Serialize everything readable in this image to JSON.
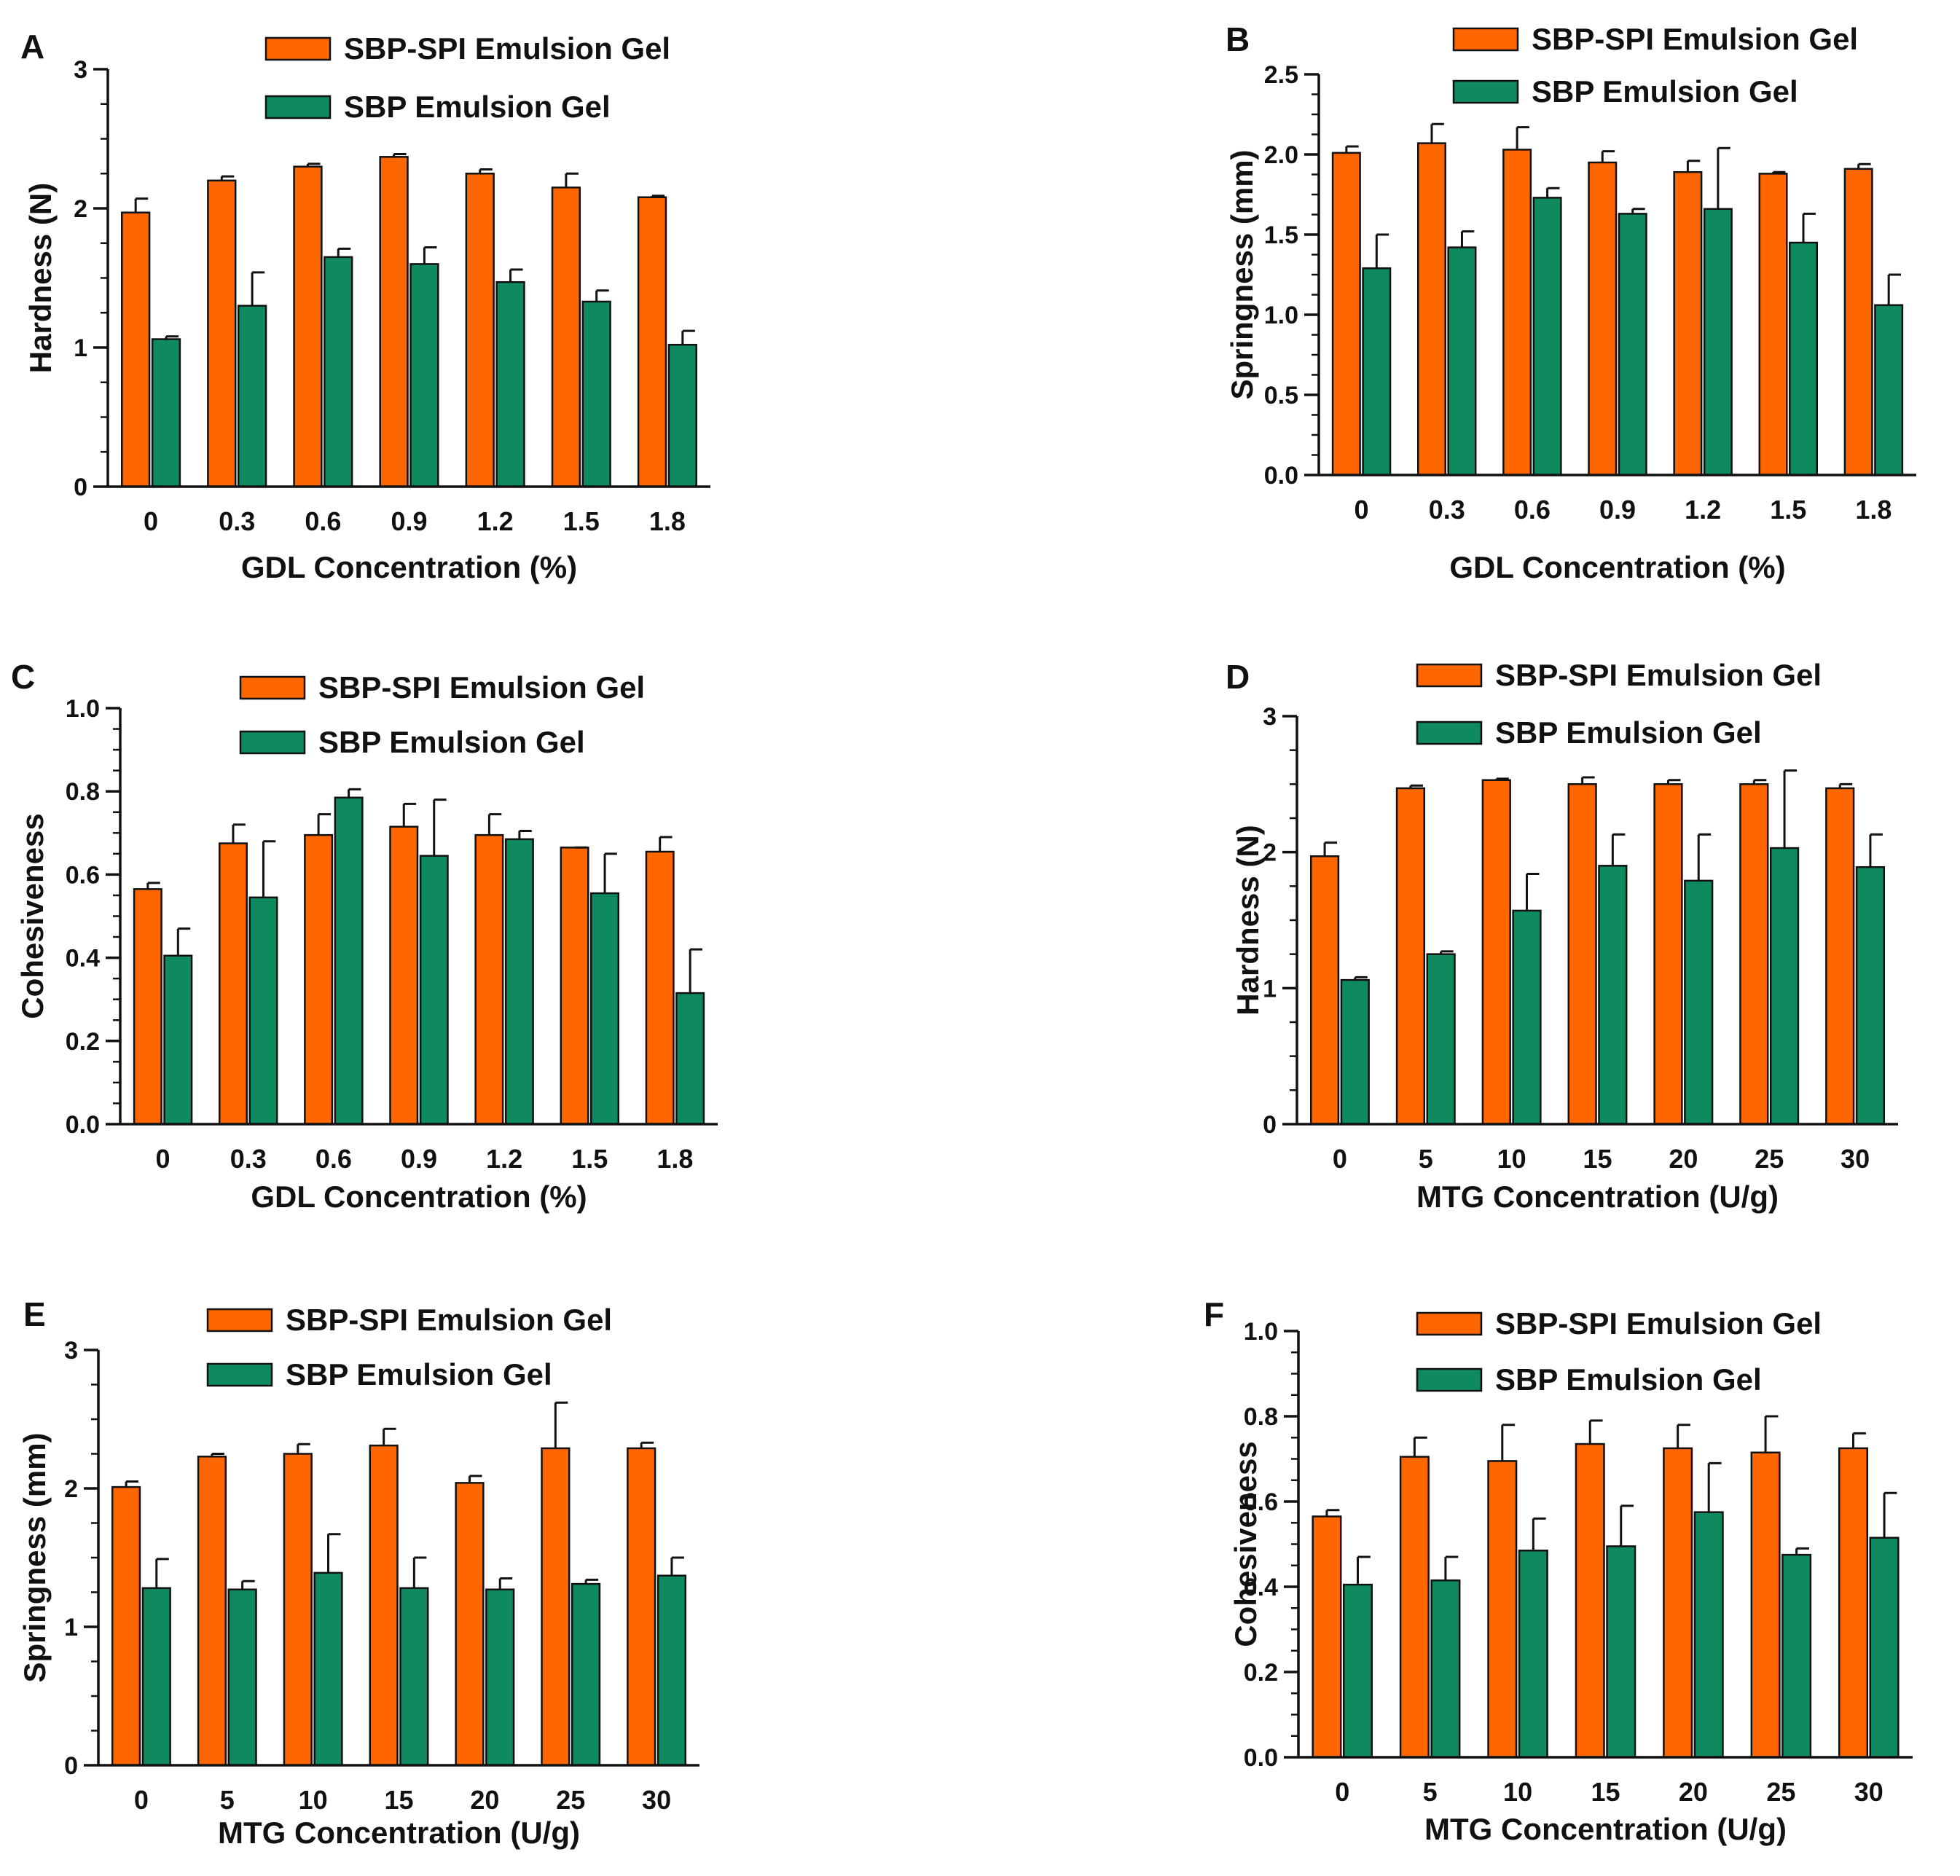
{
  "colors": {
    "series_a": "#FF6600",
    "series_b": "#0F8A5F",
    "axis": "#111111"
  },
  "chart_data": [
    {
      "panel": "A",
      "type": "bar",
      "xlabel": "GDL Concentration (%)",
      "ylabel": "Hardness (N)",
      "ylim": [
        0,
        3
      ],
      "yticks": [
        "0",
        "1",
        "2",
        "3"
      ],
      "categories": [
        "0",
        "0.3",
        "0.6",
        "0.9",
        "1.2",
        "1.5",
        "1.8"
      ],
      "series": [
        {
          "name": "SBP-SPI Emulsion Gel",
          "values": [
            1.97,
            2.2,
            2.3,
            2.37,
            2.25,
            2.15,
            2.08
          ],
          "errors": [
            0.1,
            0.03,
            0.02,
            0.02,
            0.03,
            0.1,
            0.01
          ]
        },
        {
          "name": "SBP Emulsion Gel",
          "values": [
            1.06,
            1.3,
            1.65,
            1.6,
            1.47,
            1.33,
            1.02
          ],
          "errors": [
            0.02,
            0.24,
            0.06,
            0.12,
            0.09,
            0.08,
            0.1
          ]
        }
      ],
      "legend": "top-right",
      "grid": false
    },
    {
      "panel": "B",
      "type": "bar",
      "xlabel": "GDL Concentration (%)",
      "ylabel": "Springness (mm)",
      "ylim": [
        0,
        2.5
      ],
      "yticks": [
        "0.0",
        "0.5",
        "1.0",
        "1.5",
        "2.0",
        "2.5"
      ],
      "categories": [
        "0",
        "0.3",
        "0.6",
        "0.9",
        "1.2",
        "1.5",
        "1.8"
      ],
      "series": [
        {
          "name": "SBP-SPI Emulsion Gel",
          "values": [
            2.01,
            2.07,
            2.03,
            1.95,
            1.89,
            1.88,
            1.91
          ],
          "errors": [
            0.04,
            0.12,
            0.14,
            0.07,
            0.07,
            0.01,
            0.03
          ]
        },
        {
          "name": "SBP Emulsion Gel",
          "values": [
            1.29,
            1.42,
            1.73,
            1.63,
            1.66,
            1.45,
            1.06
          ],
          "errors": [
            0.21,
            0.1,
            0.06,
            0.03,
            0.38,
            0.18,
            0.19
          ]
        }
      ],
      "legend": "top-right",
      "grid": false
    },
    {
      "panel": "C",
      "type": "bar",
      "xlabel": "GDL Concentration (%)",
      "ylabel": "Cohesiveness",
      "ylim": [
        0,
        1.0
      ],
      "yticks": [
        "0.0",
        "0.2",
        "0.4",
        "0.6",
        "0.8",
        "1.0"
      ],
      "categories": [
        "0",
        "0.3",
        "0.6",
        "0.9",
        "1.2",
        "1.5",
        "1.8"
      ],
      "series": [
        {
          "name": "SBP-SPI Emulsion Gel",
          "values": [
            0.565,
            0.675,
            0.695,
            0.715,
            0.695,
            0.665,
            0.655
          ],
          "errors": [
            0.015,
            0.045,
            0.05,
            0.055,
            0.05,
            0.0,
            0.035
          ]
        },
        {
          "name": "SBP Emulsion Gel",
          "values": [
            0.405,
            0.545,
            0.785,
            0.645,
            0.685,
            0.555,
            0.315
          ],
          "errors": [
            0.065,
            0.135,
            0.02,
            0.135,
            0.02,
            0.095,
            0.105
          ]
        }
      ],
      "legend": "top-right",
      "grid": false
    },
    {
      "panel": "D",
      "type": "bar",
      "xlabel": "MTG Concentration (U/g)",
      "ylabel": "Hardness (N)",
      "ylim": [
        0,
        3
      ],
      "yticks": [
        "0",
        "1",
        "2",
        "3"
      ],
      "categories": [
        "0",
        "5",
        "10",
        "15",
        "20",
        "25",
        "30"
      ],
      "series": [
        {
          "name": "SBP-SPI Emulsion Gel",
          "values": [
            1.97,
            2.47,
            2.53,
            2.5,
            2.5,
            2.5,
            2.47
          ],
          "errors": [
            0.1,
            0.02,
            0.01,
            0.05,
            0.03,
            0.03,
            0.03
          ]
        },
        {
          "name": "SBP Emulsion Gel",
          "values": [
            1.06,
            1.25,
            1.57,
            1.9,
            1.79,
            2.03,
            1.89
          ],
          "errors": [
            0.02,
            0.02,
            0.27,
            0.23,
            0.34,
            0.57,
            0.24
          ]
        }
      ],
      "legend": "top-right",
      "grid": false
    },
    {
      "panel": "E",
      "type": "bar",
      "xlabel": "MTG Concentration (U/g)",
      "ylabel": "Springness (mm)",
      "ylim": [
        0,
        3
      ],
      "yticks": [
        "0",
        "1",
        "2",
        "3"
      ],
      "categories": [
        "0",
        "5",
        "10",
        "15",
        "20",
        "25",
        "30"
      ],
      "series": [
        {
          "name": "SBP-SPI Emulsion Gel",
          "values": [
            2.01,
            2.23,
            2.25,
            2.31,
            2.04,
            2.29,
            2.29
          ],
          "errors": [
            0.04,
            0.02,
            0.07,
            0.12,
            0.05,
            0.33,
            0.04
          ]
        },
        {
          "name": "SBP Emulsion Gel",
          "values": [
            1.28,
            1.27,
            1.39,
            1.28,
            1.27,
            1.31,
            1.37
          ],
          "errors": [
            0.21,
            0.06,
            0.28,
            0.22,
            0.08,
            0.03,
            0.13
          ]
        }
      ],
      "legend": "top-right",
      "grid": false
    },
    {
      "panel": "F",
      "type": "bar",
      "xlabel": "MTG Concentration (U/g)",
      "ylabel": "Cohesiveness",
      "ylim": [
        0,
        1.0
      ],
      "yticks": [
        "0.0",
        "0.2",
        "0.4",
        "0.6",
        "0.8",
        "1.0"
      ],
      "categories": [
        "0",
        "5",
        "10",
        "15",
        "20",
        "25",
        "30"
      ],
      "series": [
        {
          "name": "SBP-SPI Emulsion Gel",
          "values": [
            0.565,
            0.705,
            0.695,
            0.735,
            0.725,
            0.715,
            0.725
          ],
          "errors": [
            0.015,
            0.045,
            0.085,
            0.055,
            0.055,
            0.085,
            0.035
          ]
        },
        {
          "name": "SBP Emulsion Gel",
          "values": [
            0.405,
            0.415,
            0.485,
            0.495,
            0.575,
            0.475,
            0.515
          ],
          "errors": [
            0.065,
            0.055,
            0.075,
            0.095,
            0.115,
            0.015,
            0.105
          ]
        }
      ],
      "legend": "top-right",
      "grid": false
    }
  ]
}
